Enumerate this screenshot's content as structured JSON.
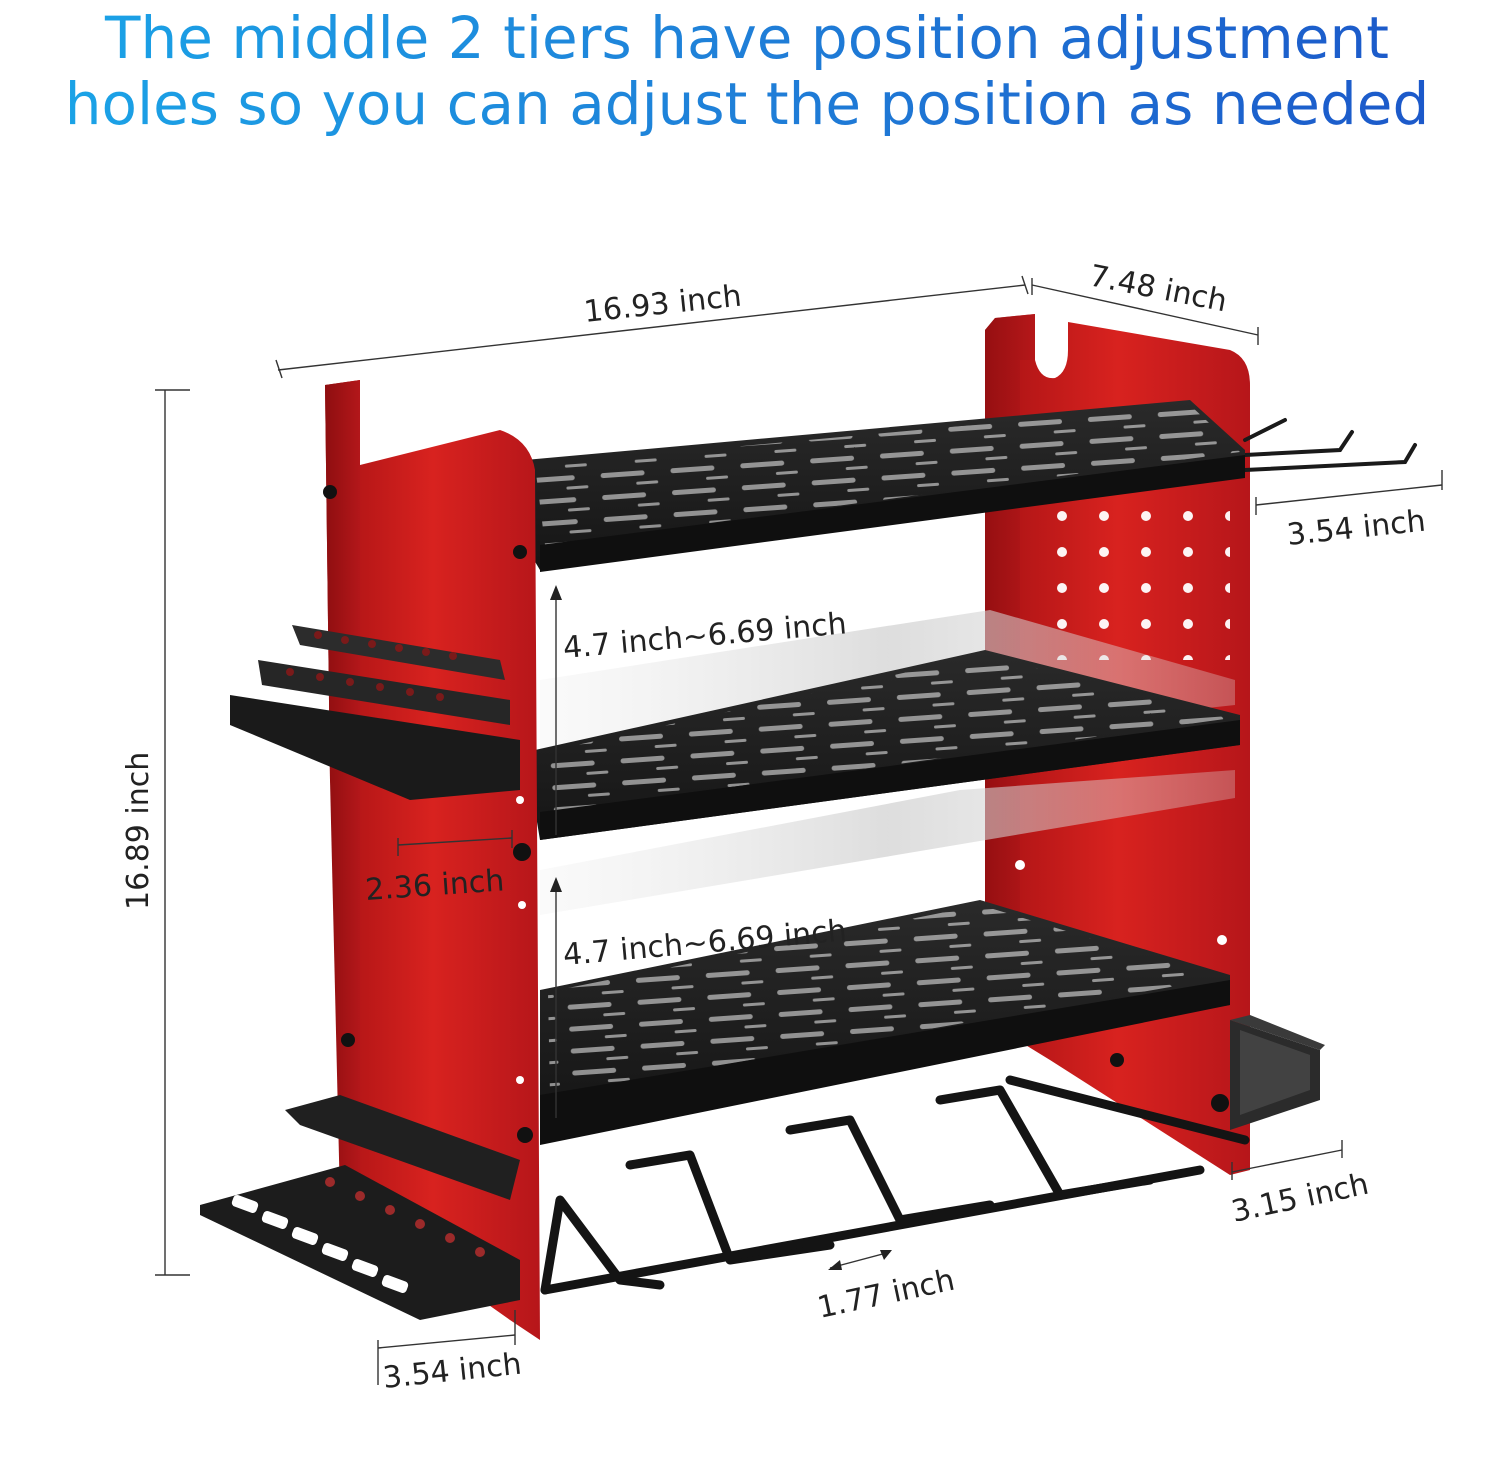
{
  "headline": {
    "line1": "The middle 2 tiers have position adjustment",
    "line2": "holes so you can adjust the position as needed"
  },
  "dimensions": {
    "width": "16.93 inch",
    "depth": "7.48 inch",
    "hook_length": "3.54 inch",
    "height": "16.89 inch",
    "tier_gap_upper": "4.7 inch~6.69 inch",
    "tier_gap_lower": "4.7 inch~6.69 inch",
    "holder_depth": "2.36 inch",
    "bottom_tray_depth": "3.54 inch",
    "slot_width": "1.77 inch",
    "side_box_depth": "3.15 inch"
  },
  "colors": {
    "headline_start": "#1aa6e8",
    "headline_end": "#1b55c8",
    "frame_red": "#c41a1c",
    "shelf_black": "#1e1e1e"
  }
}
